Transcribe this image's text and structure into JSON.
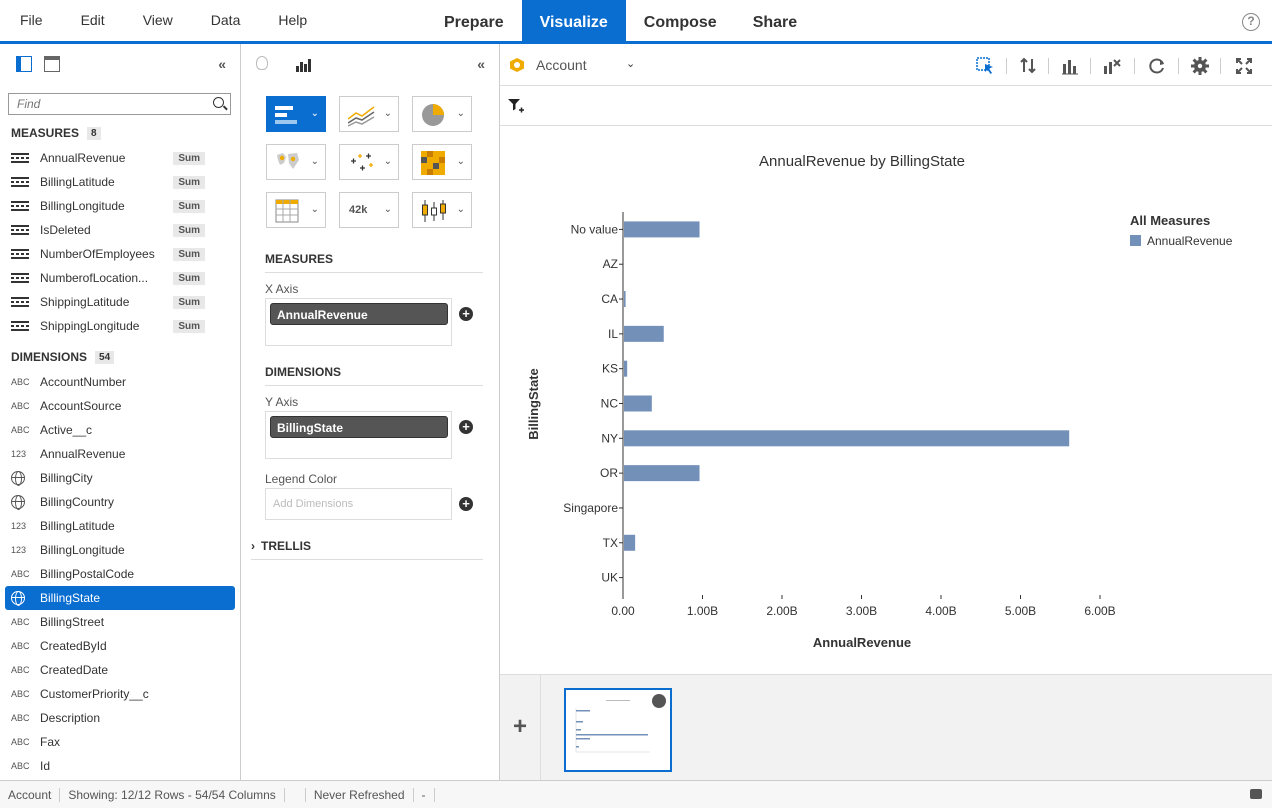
{
  "menu": [
    "File",
    "Edit",
    "View",
    "Data",
    "Help"
  ],
  "tabs": [
    {
      "label": "Prepare",
      "active": false
    },
    {
      "label": "Visualize",
      "active": true
    },
    {
      "label": "Compose",
      "active": false
    },
    {
      "label": "Share",
      "active": false
    }
  ],
  "left": {
    "find_placeholder": "Find",
    "measures_title": "MEASURES",
    "measures_count": "8",
    "measures": [
      {
        "name": "AnnualRevenue",
        "agg": "Sum"
      },
      {
        "name": "BillingLatitude",
        "agg": "Sum"
      },
      {
        "name": "BillingLongitude",
        "agg": "Sum"
      },
      {
        "name": "IsDeleted",
        "agg": "Sum"
      },
      {
        "name": "NumberOfEmployees",
        "agg": "Sum"
      },
      {
        "name": "NumberofLocation...",
        "agg": "Sum"
      },
      {
        "name": "ShippingLatitude",
        "agg": "Sum"
      },
      {
        "name": "ShippingLongitude",
        "agg": "Sum"
      }
    ],
    "dimensions_title": "DIMENSIONS",
    "dimensions_count": "54",
    "dimensions": [
      {
        "name": "AccountNumber",
        "type": "ABC"
      },
      {
        "name": "AccountSource",
        "type": "ABC"
      },
      {
        "name": "Active__c",
        "type": "ABC"
      },
      {
        "name": "AnnualRevenue",
        "type": "123"
      },
      {
        "name": "BillingCity",
        "type": "geo"
      },
      {
        "name": "BillingCountry",
        "type": "geo"
      },
      {
        "name": "BillingLatitude",
        "type": "123"
      },
      {
        "name": "BillingLongitude",
        "type": "123"
      },
      {
        "name": "BillingPostalCode",
        "type": "ABC"
      },
      {
        "name": "BillingState",
        "type": "geo",
        "selected": true
      },
      {
        "name": "BillingStreet",
        "type": "ABC"
      },
      {
        "name": "CreatedById",
        "type": "ABC"
      },
      {
        "name": "CreatedDate",
        "type": "ABC"
      },
      {
        "name": "CustomerPriority__c",
        "type": "ABC"
      },
      {
        "name": "Description",
        "type": "ABC"
      },
      {
        "name": "Fax",
        "type": "ABC"
      },
      {
        "name": "Id",
        "type": "ABC"
      }
    ]
  },
  "mid": {
    "measures_title": "MEASURES",
    "x_axis_label": "X Axis",
    "x_axis_value": "AnnualRevenue",
    "dimensions_title": "DIMENSIONS",
    "y_axis_label": "Y Axis",
    "y_axis_value": "BillingState",
    "legend_label": "Legend Color",
    "legend_placeholder": "Add Dimensions",
    "trellis_label": "TRELLIS",
    "numeric_chart_text": "42k"
  },
  "right": {
    "dataset_name": "Account"
  },
  "chart_data": {
    "type": "bar",
    "orientation": "horizontal",
    "title": "AnnualRevenue by BillingState",
    "xlabel": "AnnualRevenue",
    "ylabel": "BillingState",
    "categories": [
      "No value",
      "AZ",
      "CA",
      "IL",
      "KS",
      "NC",
      "NY",
      "OR",
      "Singapore",
      "TX",
      "UK"
    ],
    "series": [
      {
        "name": "AnnualRevenue",
        "values": [
          0.95,
          0,
          0.02,
          0.5,
          0.04,
          0.35,
          5.6,
          0.95,
          0,
          0.14,
          0
        ]
      }
    ],
    "value_unit": "B",
    "xlim": [
      0,
      6
    ],
    "xticks": [
      "0.00",
      "1.00B",
      "2.00B",
      "3.00B",
      "4.00B",
      "5.00B",
      "6.00B"
    ],
    "legend_title": "All Measures",
    "legend_position": "top-right",
    "bar_color": "#7390b8",
    "grid": false
  },
  "status": {
    "dataset": "Account",
    "showing": "Showing: 12/12 Rows - 54/54 Columns",
    "refresh": "Never Refreshed",
    "dash": "-"
  },
  "colors": {
    "accent": "#0a6ed1"
  }
}
